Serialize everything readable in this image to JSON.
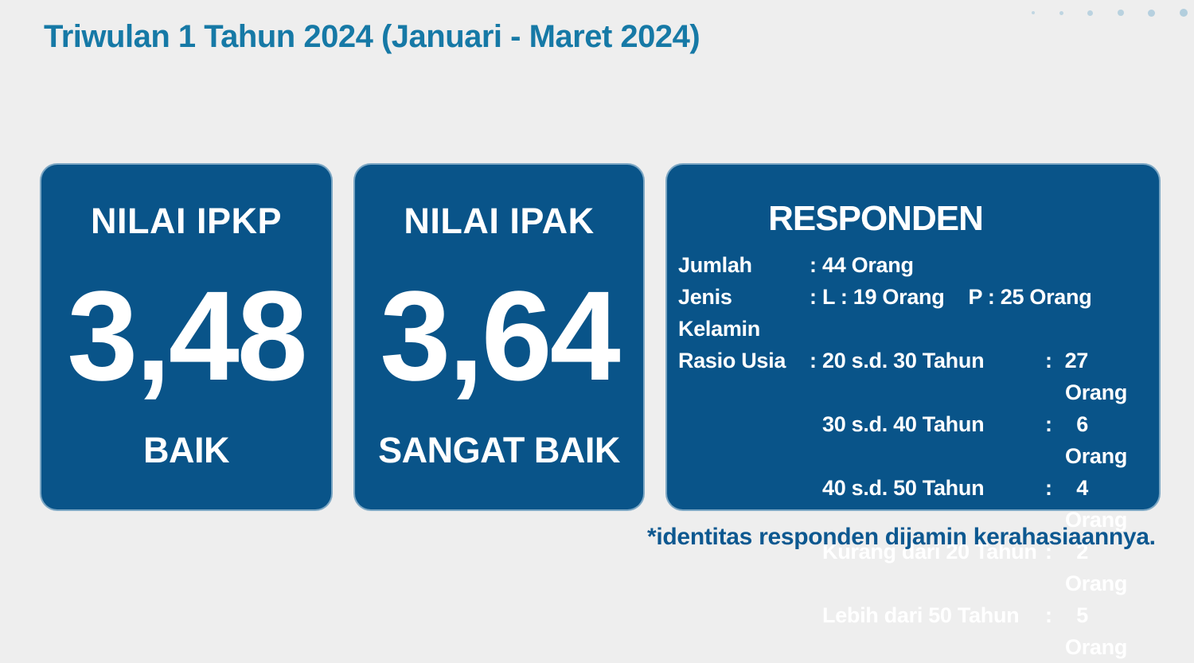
{
  "page": {
    "title": "Triwulan 1 Tahun 2024 (Januari - Maret 2024)",
    "footnote": "*identitas responden dijamin kerahasiaannya."
  },
  "colors": {
    "background": "#eeeeee",
    "card_blue": "#095489",
    "card_border": "#8ab0cb",
    "title_teal": "#1679A6",
    "footnote_blue": "#0D5890",
    "dot_blue": "#b2cedd",
    "card_text": "#ffffff"
  },
  "cards": {
    "ipkp": {
      "title": "NILAI IPKP",
      "value": "3,48",
      "category": "BAIK"
    },
    "ipak": {
      "title": "NILAI IPAK",
      "value": "3,64",
      "category": "SANGAT BAIK"
    },
    "responden": {
      "title": "RESPONDEN",
      "rows": {
        "jumlah": {
          "label": "Jumlah",
          "sep": ":",
          "value": "44 Orang"
        },
        "jenis_kelamin": {
          "label": "Jenis Kelamin",
          "sep": ":",
          "value_l": "L : 19 Orang",
          "value_p": "P : 25 Orang"
        },
        "rasio_usia": {
          "label": "Rasio Usia",
          "sep": ":"
        }
      },
      "usia_rows": [
        {
          "range": "20 s.d. 30 Tahun",
          "sep": ":",
          "count": "27",
          "unit": "Orang"
        },
        {
          "range": "30 s.d. 40 Tahun",
          "sep": ":",
          "count": "6",
          "unit": "Orang"
        },
        {
          "range": "40 s.d. 50 Tahun",
          "sep": ":",
          "count": "4",
          "unit": "Orang"
        },
        {
          "range": "Kurang dari 20 Tahun",
          "sep": ":",
          "count": "2",
          "unit": "Orang"
        },
        {
          "range": "Lebih dari 50 Tahun",
          "sep": ":",
          "count": "5",
          "unit": "Orang"
        }
      ]
    }
  }
}
